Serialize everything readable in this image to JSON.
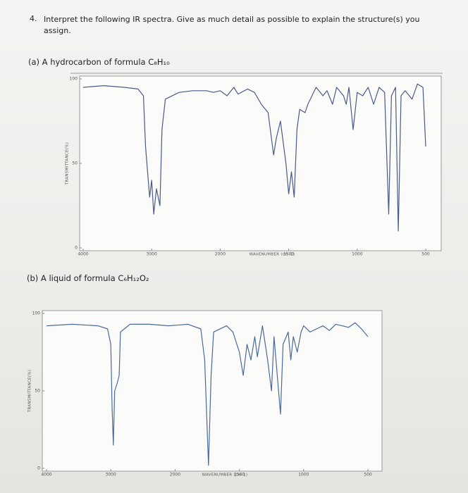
{
  "question": {
    "number": "4.",
    "text": "Interpret the following IR spectra. Give as much detail as possible to explain the structure(s) you assign."
  },
  "chart_data": [
    {
      "type": "line",
      "title": "(a) A hydrocarbon of formula C₈H₁₀",
      "xlabel": "WAVENUMBER (cm-1)",
      "ylabel": "TRANSMITTANCE(%)",
      "color": "#4a5a8a",
      "xlim": [
        4000,
        500
      ],
      "ylim": [
        0,
        100
      ],
      "xticks": [
        4000,
        3000,
        2000,
        1500,
        1000,
        500
      ],
      "yticks": [
        0,
        50,
        100
      ],
      "x": [
        4000,
        3700,
        3400,
        3200,
        3120,
        3090,
        3060,
        3030,
        3000,
        2970,
        2930,
        2880,
        2850,
        2800,
        2600,
        2400,
        2200,
        2100,
        2000,
        1950,
        1900,
        1870,
        1800,
        1750,
        1700,
        1650,
        1610,
        1590,
        1560,
        1520,
        1500,
        1480,
        1460,
        1440,
        1420,
        1380,
        1360,
        1300,
        1250,
        1220,
        1180,
        1150,
        1100,
        1080,
        1060,
        1030,
        1000,
        960,
        920,
        880,
        840,
        800,
        770,
        750,
        720,
        700,
        680,
        650,
        600,
        560,
        520,
        500
      ],
      "values": [
        95,
        96,
        95,
        94,
        90,
        60,
        45,
        30,
        40,
        20,
        35,
        25,
        70,
        88,
        92,
        93,
        93,
        92,
        93,
        90,
        95,
        91,
        94,
        92,
        85,
        80,
        55,
        65,
        75,
        50,
        32,
        45,
        30,
        70,
        82,
        80,
        85,
        95,
        90,
        93,
        85,
        95,
        90,
        85,
        95,
        70,
        92,
        90,
        95,
        85,
        95,
        92,
        20,
        90,
        95,
        10,
        90,
        93,
        88,
        97,
        95,
        60
      ]
    },
    {
      "type": "line",
      "title": "(b) A liquid of formula C₆H₁₂O₂",
      "xlabel": "WAVENUMBER (cm-1)",
      "ylabel": "TRANSMITTANCE(%)",
      "color": "#4a6a9a",
      "xlim": [
        4000,
        500
      ],
      "ylim": [
        0,
        100
      ],
      "xticks": [
        4000,
        3000,
        2000,
        1500,
        1000,
        500
      ],
      "yticks": [
        0,
        50,
        100
      ],
      "x": [
        4000,
        3600,
        3200,
        3050,
        3000,
        2980,
        2960,
        2940,
        2900,
        2870,
        2850,
        2700,
        2400,
        2100,
        1900,
        1800,
        1770,
        1740,
        1720,
        1700,
        1600,
        1550,
        1500,
        1470,
        1440,
        1410,
        1380,
        1360,
        1320,
        1280,
        1250,
        1230,
        1200,
        1180,
        1160,
        1120,
        1100,
        1080,
        1050,
        1020,
        1000,
        950,
        900,
        850,
        800,
        750,
        700,
        650,
        600,
        550,
        500
      ],
      "values": [
        92,
        93,
        92,
        90,
        80,
        40,
        15,
        50,
        55,
        60,
        88,
        93,
        93,
        92,
        93,
        90,
        70,
        2,
        60,
        88,
        92,
        88,
        75,
        60,
        80,
        70,
        85,
        72,
        92,
        70,
        50,
        85,
        55,
        35,
        80,
        88,
        70,
        85,
        75,
        88,
        92,
        88,
        90,
        92,
        89,
        93,
        92,
        91,
        94,
        90,
        85
      ]
    }
  ]
}
